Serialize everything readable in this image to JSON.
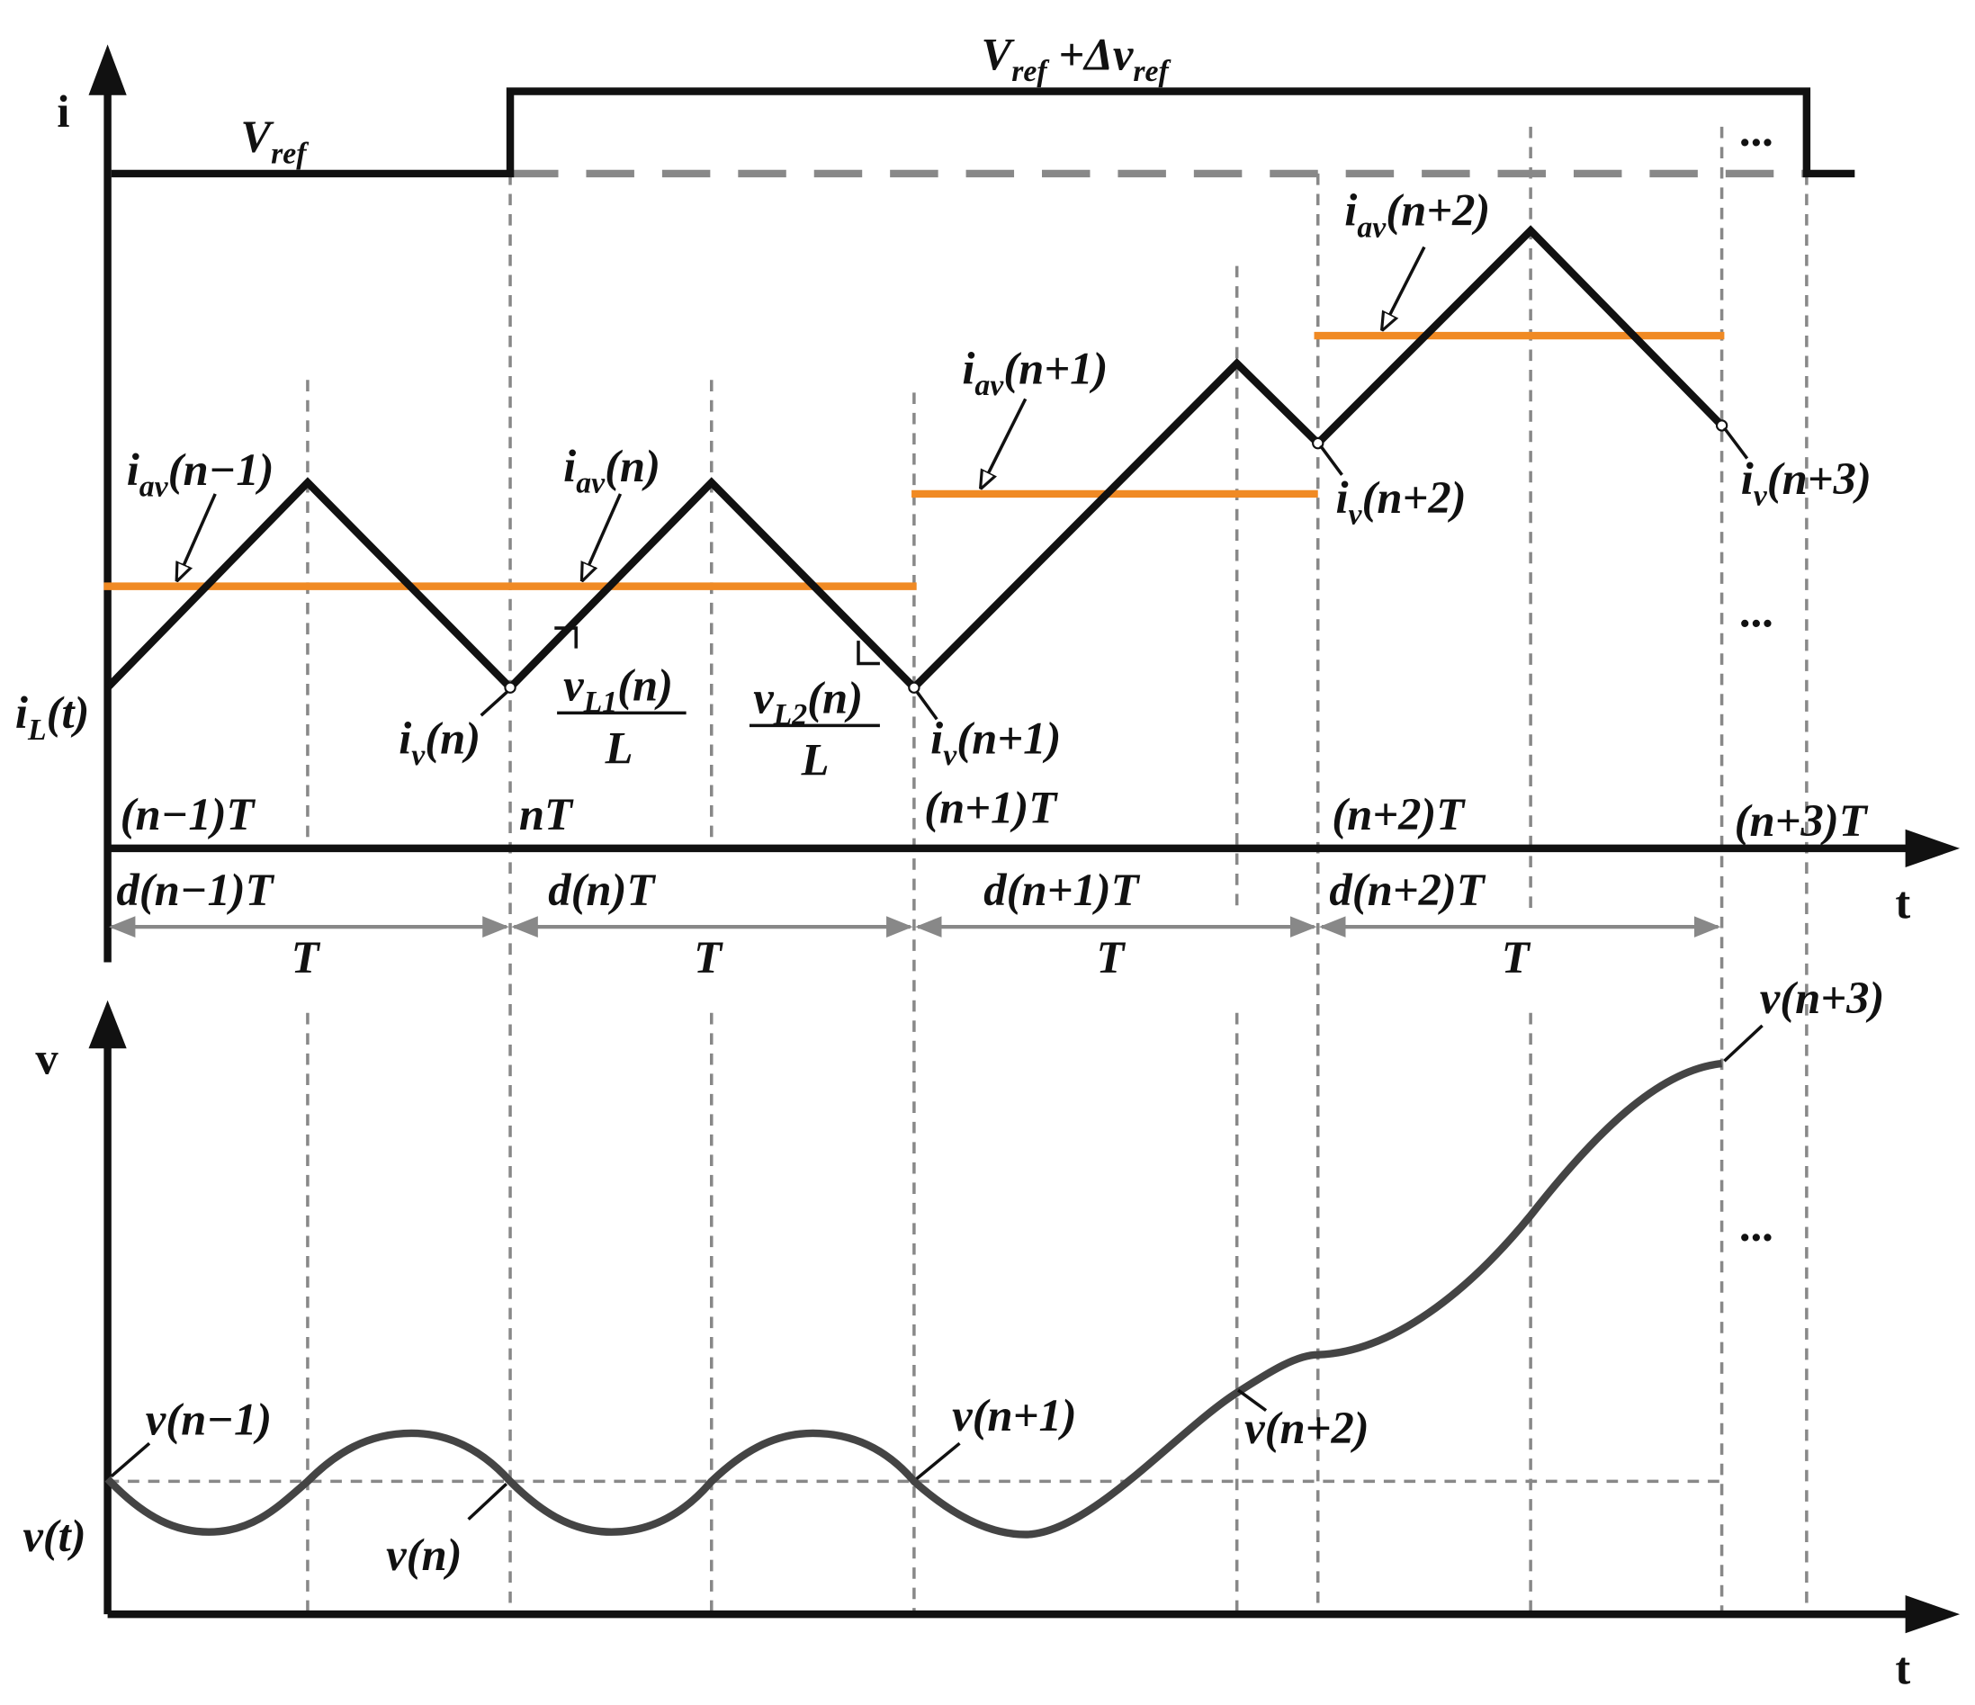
{
  "axes": {
    "i": "i",
    "t_top": "t",
    "v": "v",
    "t_bottom": "t"
  },
  "labels": [
    {
      "parts": [
        {
          "text": "V"
        },
        {
          "sub": "ref"
        }
      ]
    },
    {
      "parts": [
        {
          "text": "V"
        },
        {
          "sub": "ref"
        },
        {
          "text": " +Δv"
        },
        {
          "sub": "ref"
        }
      ]
    },
    {
      "parts": [
        {
          "text": "i"
        },
        {
          "sub": "av"
        },
        {
          "text": "(n−1)"
        }
      ]
    },
    {
      "parts": [
        {
          "text": "i"
        },
        {
          "sub": "av"
        },
        {
          "text": "(n)"
        }
      ]
    },
    {
      "parts": [
        {
          "text": "i"
        },
        {
          "sub": "av"
        },
        {
          "text": "(n+1)"
        }
      ]
    },
    {
      "parts": [
        {
          "text": "i"
        },
        {
          "sub": "av"
        },
        {
          "text": "(n+2)"
        }
      ]
    },
    {
      "parts": [
        {
          "text": "i"
        },
        {
          "sub": "L"
        },
        {
          "text": "(t)"
        }
      ]
    },
    {
      "parts": [
        {
          "text": "i"
        },
        {
          "sub": "v"
        },
        {
          "text": "(n)"
        }
      ]
    },
    {
      "parts": [
        {
          "text": "v"
        },
        {
          "sub": "L1"
        },
        {
          "text": "(n)"
        }
      ]
    },
    {
      "parts": [
        {
          "text": "L"
        }
      ]
    },
    {
      "parts": [
        {
          "text": "v"
        },
        {
          "sub": "L2"
        },
        {
          "text": "(n)"
        }
      ]
    },
    {
      "parts": [
        {
          "text": "L"
        }
      ]
    },
    {
      "parts": [
        {
          "text": "i"
        },
        {
          "sub": "v"
        },
        {
          "text": "(n+1)"
        }
      ]
    },
    {
      "parts": [
        {
          "text": "i"
        },
        {
          "sub": "v"
        },
        {
          "text": "(n+2)"
        }
      ]
    },
    {
      "parts": [
        {
          "text": "i"
        },
        {
          "sub": "v"
        },
        {
          "text": "(n+3)"
        }
      ]
    },
    {
      "parts": [
        {
          "text": "(n−1)T"
        }
      ]
    },
    {
      "parts": [
        {
          "text": "nT"
        }
      ]
    },
    {
      "parts": [
        {
          "text": "(n+1)T"
        }
      ]
    },
    {
      "parts": [
        {
          "text": "(n+2)T"
        }
      ]
    },
    {
      "parts": [
        {
          "text": "(n+3)T"
        }
      ]
    },
    {
      "parts": [
        {
          "text": "d(n−1)T"
        }
      ]
    },
    {
      "parts": [
        {
          "text": "d(n)T"
        }
      ]
    },
    {
      "parts": [
        {
          "text": "d(n+1)T"
        }
      ]
    },
    {
      "parts": [
        {
          "text": "d(n+2)T"
        }
      ]
    },
    {
      "parts": [
        {
          "text": "T"
        }
      ]
    },
    {
      "parts": [
        {
          "text": "T"
        }
      ]
    },
    {
      "parts": [
        {
          "text": "T"
        }
      ]
    },
    {
      "parts": [
        {
          "text": "T"
        }
      ]
    },
    {
      "parts": [
        {
          "text": "v(n−1)"
        }
      ]
    },
    {
      "parts": [
        {
          "text": "v(n)"
        }
      ]
    },
    {
      "parts": [
        {
          "text": "v(n+1)"
        }
      ]
    },
    {
      "parts": [
        {
          "text": "v(n+2)"
        }
      ]
    },
    {
      "parts": [
        {
          "text": "v(n+3)"
        }
      ]
    },
    {
      "parts": [
        {
          "text": "v(t)"
        }
      ]
    },
    {
      "parts": [
        {
          "text": "..."
        }
      ]
    },
    {
      "parts": [
        {
          "text": "..."
        }
      ]
    },
    {
      "parts": [
        {
          "text": "..."
        }
      ]
    }
  ]
}
